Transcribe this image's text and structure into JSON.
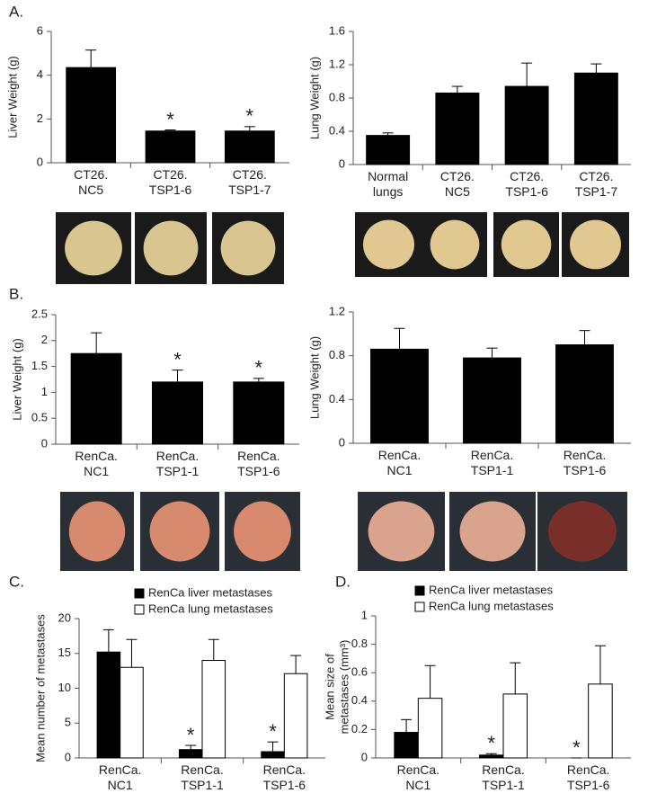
{
  "chart_data": [
    {
      "type": "bar",
      "panel": "A.",
      "ylabel": [
        "Liver Weight (g)"
      ],
      "categories": [
        [
          "CT26.",
          "NC5"
        ],
        [
          "CT26.",
          "TSP1-6"
        ],
        [
          "CT26.",
          "TSP1-7"
        ]
      ],
      "series": [
        {
          "color": "#000000",
          "values": [
            4.35,
            1.45,
            1.45
          ],
          "errors": [
            0.8,
            0.05,
            0.2
          ],
          "markers": [
            null,
            "*",
            "*"
          ]
        }
      ],
      "ylim": [
        0,
        6
      ],
      "yticks": [
        0,
        2,
        4,
        6
      ]
    },
    {
      "type": "bar",
      "ylabel": [
        "Lung Weight (g)"
      ],
      "categories": [
        [
          "Normal",
          "lungs"
        ],
        [
          "CT26.",
          "NC5"
        ],
        [
          "CT26.",
          "TSP1-6"
        ],
        [
          "CT26.",
          "TSP1-7"
        ]
      ],
      "series": [
        {
          "color": "#000000",
          "values": [
            0.35,
            0.86,
            0.94,
            1.1
          ],
          "errors": [
            0.03,
            0.08,
            0.28,
            0.11
          ]
        }
      ],
      "ylim": [
        0,
        1.6
      ],
      "yticks": [
        0,
        0.4,
        0.8,
        1.2,
        1.6
      ]
    },
    {
      "type": "bar",
      "panel": "B.",
      "ylabel": [
        "Liver Weight (g)"
      ],
      "categories": [
        [
          "RenCa.",
          "NC1"
        ],
        [
          "RenCa.",
          "TSP1-1"
        ],
        [
          "RenCa.",
          "TSP1-6"
        ]
      ],
      "series": [
        {
          "color": "#000000",
          "values": [
            1.75,
            1.2,
            1.2
          ],
          "errors": [
            0.4,
            0.23,
            0.07
          ],
          "markers": [
            null,
            "*",
            "*"
          ]
        }
      ],
      "ylim": [
        0,
        2.5
      ],
      "yticks": [
        0,
        0.5,
        1,
        1.5,
        2,
        2.5
      ]
    },
    {
      "type": "bar",
      "ylabel": [
        "Lung Weight (g)"
      ],
      "categories": [
        [
          "RenCa.",
          "NC1"
        ],
        [
          "RenCa.",
          "TSP1-1"
        ],
        [
          "RenCa.",
          "TSP1-6"
        ]
      ],
      "series": [
        {
          "color": "#000000",
          "values": [
            0.86,
            0.78,
            0.9
          ],
          "errors": [
            0.19,
            0.09,
            0.13
          ]
        }
      ],
      "ylim": [
        0,
        1.2
      ],
      "yticks": [
        0,
        0.4,
        0.8,
        1.2
      ]
    },
    {
      "type": "bar",
      "panel": "C.",
      "ylabel": [
        "Mean number of metastases"
      ],
      "categories": [
        [
          "RenCa.",
          "NC1"
        ],
        [
          "RenCa.",
          "TSP1-1"
        ],
        [
          "RenCa.",
          "TSP1-6"
        ]
      ],
      "series": [
        {
          "name": "RenCa liver metastases",
          "color": "#000000",
          "values": [
            15.2,
            1.2,
            0.9
          ],
          "errors": [
            3.2,
            0.6,
            1.4
          ],
          "markers": [
            null,
            "*",
            "*"
          ]
        },
        {
          "name": "RenCa lung metastases",
          "color": "#ffffff",
          "values": [
            13,
            14,
            12.1
          ],
          "errors": [
            4,
            3,
            2.6
          ]
        }
      ],
      "ylim": [
        0,
        20
      ],
      "yticks": [
        0,
        5,
        10,
        15,
        20
      ]
    },
    {
      "type": "bar",
      "panel": "D.",
      "ylabel": [
        "Mean size of",
        "metastases (mm³)"
      ],
      "categories": [
        [
          "RenCa.",
          "NC1"
        ],
        [
          "RenCa.",
          "TSP1-1"
        ],
        [
          "RenCa.",
          "TSP1-6"
        ]
      ],
      "series": [
        {
          "name": "RenCa liver metastases",
          "color": "#000000",
          "values": [
            0.18,
            0.02,
            0
          ],
          "errors": [
            0.09,
            0.01,
            0
          ],
          "markers": [
            null,
            "*",
            "*"
          ]
        },
        {
          "name": "RenCa lung metastases",
          "color": "#ffffff",
          "values": [
            0.42,
            0.45,
            0.52
          ],
          "errors": [
            0.23,
            0.22,
            0.27
          ]
        }
      ],
      "ylim": [
        0,
        1
      ],
      "yticks": [
        0,
        0.2,
        0.4,
        0.6,
        0.8,
        1
      ]
    }
  ]
}
